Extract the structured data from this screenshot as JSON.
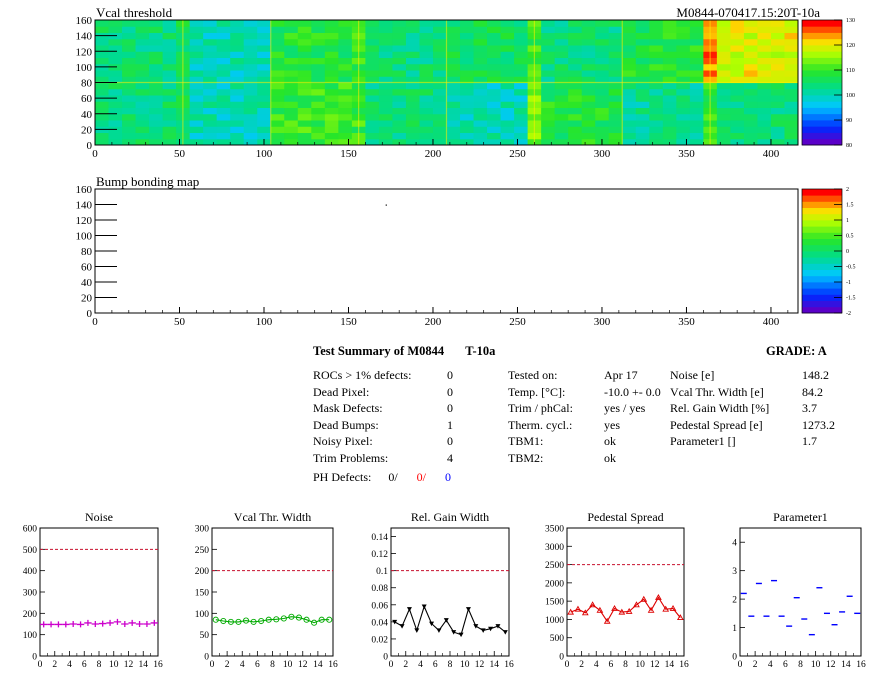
{
  "top_map": {
    "title": "Vcal threshold",
    "id_label": "M0844-070417.15:20T-10a",
    "x_ticks": [
      "0",
      "50",
      "100",
      "150",
      "200",
      "250",
      "300",
      "350",
      "400"
    ],
    "y_ticks": [
      "0",
      "20",
      "40",
      "60",
      "80",
      "100",
      "120",
      "140",
      "160"
    ],
    "scale_ticks": [
      "80",
      "90",
      "100",
      "110",
      "120",
      "130"
    ]
  },
  "bump_map": {
    "title": "Bump bonding map",
    "x_ticks": [
      "0",
      "50",
      "100",
      "150",
      "200",
      "250",
      "300",
      "350",
      "400"
    ],
    "y_ticks": [
      "0",
      "20",
      "40",
      "60",
      "80",
      "100",
      "120",
      "140",
      "160"
    ],
    "scale_ticks": [
      "-2",
      "-1.5",
      "-1",
      "-0.5",
      "0",
      "0.5",
      "1",
      "1.5",
      "2"
    ]
  },
  "summary": {
    "heading": "Test Summary of M0844",
    "temp_label": "T-10a",
    "grade": "GRADE:  A",
    "left_rows": [
      {
        "label": "ROCs > 1% defects:",
        "value": "0"
      },
      {
        "label": "Dead Pixel:",
        "value": "0"
      },
      {
        "label": "Mask Defects:",
        "value": "0"
      },
      {
        "label": "Dead Bumps:",
        "value": "1"
      },
      {
        "label": "Noisy Pixel:",
        "value": "0"
      },
      {
        "label": "Trim Problems:",
        "value": "4"
      }
    ],
    "ph_label": "PH Defects:",
    "ph_values": [
      "0/",
      "0/",
      "0"
    ],
    "ph_colors": [
      "#000000",
      "#ff0000",
      "#0000ff"
    ],
    "mid_rows": [
      {
        "label": "Tested on:",
        "value": "Apr 17"
      },
      {
        "label": "Temp. [°C]:",
        "value": "-10.0 +- 0.0"
      },
      {
        "label": "Trim / phCal:",
        "value": "yes / yes"
      },
      {
        "label": "Therm. cycl.:",
        "value": "yes"
      },
      {
        "label": "TBM1:",
        "value": "ok"
      },
      {
        "label": "TBM2:",
        "value": "ok"
      }
    ],
    "right_rows": [
      {
        "label": "Noise [e]",
        "value": "148.2"
      },
      {
        "label": "Vcal Thr. Width [e]",
        "value": "84.2"
      },
      {
        "label": "Rel. Gain Width [%]",
        "value": "3.7"
      },
      {
        "label": "Pedestal Spread [e]",
        "value": "1273.2"
      },
      {
        "label": "Parameter1 []",
        "value": "1.7"
      }
    ]
  },
  "chart_data": [
    {
      "type": "heatmap",
      "title": "Vcal threshold",
      "x_range": [
        0,
        416
      ],
      "y_range": [
        0,
        160
      ],
      "z_range": [
        80,
        130
      ],
      "roc_means": [
        104,
        100,
        108,
        104,
        106,
        104,
        108,
        120,
        104,
        100,
        110,
        104,
        100,
        108,
        102,
        104
      ],
      "colors": [
        "#0000ff",
        "#00c8ff",
        "#00ff66",
        "#ffff00",
        "#ff0000"
      ]
    },
    {
      "type": "heatmap",
      "title": "Bump bonding map",
      "x_range": [
        0,
        416
      ],
      "y_range": [
        0,
        160
      ],
      "z_range": [
        -2,
        2
      ],
      "points": [
        {
          "x": 172,
          "y": 140
        }
      ]
    },
    {
      "type": "scatter",
      "title": "Noise",
      "x": [
        0,
        1,
        2,
        3,
        4,
        5,
        6,
        7,
        8,
        9,
        10,
        11,
        12,
        13,
        14,
        15
      ],
      "values": [
        148,
        148,
        148,
        148,
        150,
        148,
        155,
        150,
        152,
        155,
        160,
        150,
        155,
        150,
        150,
        155
      ],
      "xlim": [
        0,
        16
      ],
      "ylim": [
        0,
        600
      ],
      "threshold": 500,
      "color": "#cc00cc",
      "marker": "plus"
    },
    {
      "type": "line",
      "title": "Vcal Thr. Width",
      "x": [
        0,
        1,
        2,
        3,
        4,
        5,
        6,
        7,
        8,
        9,
        10,
        11,
        12,
        13,
        14,
        15
      ],
      "values": [
        85,
        82,
        80,
        80,
        83,
        80,
        82,
        85,
        86,
        88,
        92,
        90,
        85,
        78,
        85,
        85
      ],
      "xlim": [
        0,
        16
      ],
      "ylim": [
        0,
        300
      ],
      "threshold": 200,
      "color": "#00aa00",
      "marker": "circle"
    },
    {
      "type": "line",
      "title": "Rel. Gain Width",
      "x": [
        0,
        1,
        2,
        3,
        4,
        5,
        6,
        7,
        8,
        9,
        10,
        11,
        12,
        13,
        14,
        15
      ],
      "values": [
        0.04,
        0.035,
        0.055,
        0.03,
        0.058,
        0.038,
        0.03,
        0.042,
        0.028,
        0.025,
        0.055,
        0.035,
        0.03,
        0.032,
        0.035,
        0.028
      ],
      "xlim": [
        0,
        16
      ],
      "ylim": [
        0,
        0.15
      ],
      "threshold": 0.1,
      "color": "#000000",
      "marker": "triangle-down"
    },
    {
      "type": "line",
      "title": "Pedestal Spread",
      "x": [
        0,
        1,
        2,
        3,
        4,
        5,
        6,
        7,
        8,
        9,
        10,
        11,
        12,
        13,
        14,
        15
      ],
      "values": [
        1200,
        1280,
        1180,
        1400,
        1250,
        950,
        1300,
        1200,
        1220,
        1400,
        1550,
        1250,
        1600,
        1280,
        1300,
        1050
      ],
      "xlim": [
        0,
        16
      ],
      "ylim": [
        0,
        3500
      ],
      "threshold": 2500,
      "color": "#dd0000",
      "marker": "triangle-up"
    },
    {
      "type": "scatter",
      "title": "Parameter1",
      "x": [
        0,
        1,
        2,
        3,
        4,
        5,
        6,
        7,
        8,
        9,
        10,
        11,
        12,
        13,
        14,
        15
      ],
      "values": [
        2.2,
        1.4,
        2.55,
        1.4,
        2.65,
        1.4,
        1.05,
        2.05,
        1.3,
        0.75,
        2.4,
        1.5,
        1.1,
        1.55,
        2.1,
        1.5
      ],
      "xlim": [
        0,
        16
      ],
      "ylim": [
        0,
        4.5
      ],
      "color": "#0000ff",
      "marker": "dash"
    }
  ]
}
